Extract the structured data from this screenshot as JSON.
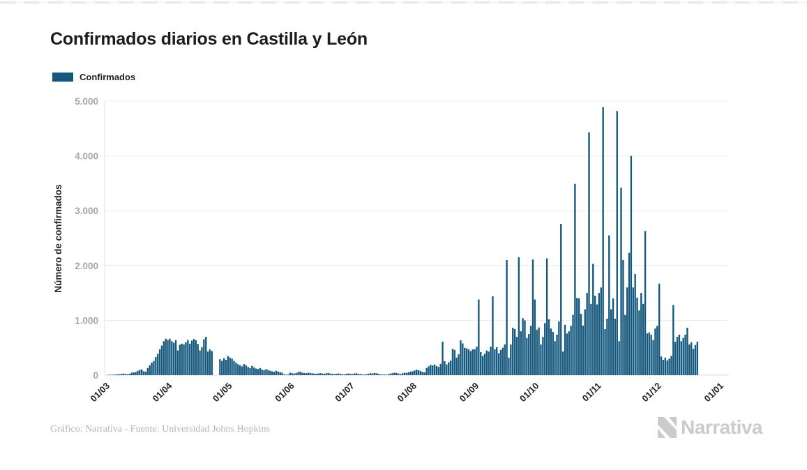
{
  "header": {
    "title": "Confirmados diarios en Castilla y León"
  },
  "legend": {
    "items": [
      {
        "label": "Confirmados",
        "color": "#14587e"
      }
    ]
  },
  "footer": {
    "credit": "Gráfico: Narrativa - Fuente: Universidad Johns Hopkins",
    "brand": "Narrativa"
  },
  "chart_data": {
    "type": "bar",
    "title": "Confirmados diarios en Castilla y León",
    "xlabel": "",
    "ylabel": "Número de confirmados",
    "ylim": [
      0,
      5000
    ],
    "grid": "horizontal",
    "legend_position": "top-left",
    "bar_color": "#14587e",
    "axis_colors": {
      "grid": "#ececec",
      "axis_line": "#e0e0e0",
      "y_tick_text": "#a6a6a6",
      "x_tick_text": "#222222"
    },
    "y_ticks": [
      {
        "value": 0,
        "label": "0"
      },
      {
        "value": 1000,
        "label": "1.000"
      },
      {
        "value": 2000,
        "label": "2.000"
      },
      {
        "value": 3000,
        "label": "3.000"
      },
      {
        "value": 4000,
        "label": "4.000"
      },
      {
        "value": 5000,
        "label": "5.000"
      }
    ],
    "x_ticks": [
      {
        "index": 0,
        "label": "01/03"
      },
      {
        "index": 31,
        "label": "01/04"
      },
      {
        "index": 61,
        "label": "01/05"
      },
      {
        "index": 92,
        "label": "01/06"
      },
      {
        "index": 122,
        "label": "01/07"
      },
      {
        "index": 153,
        "label": "01/08"
      },
      {
        "index": 184,
        "label": "01/09"
      },
      {
        "index": 214,
        "label": "01/10"
      },
      {
        "index": 245,
        "label": "01/11"
      },
      {
        "index": 275,
        "label": "01/12"
      },
      {
        "index": 306,
        "label": "01/01"
      }
    ],
    "total_slots": 307,
    "series": [
      {
        "name": "Confirmados",
        "values": [
          0,
          5,
          8,
          6,
          10,
          12,
          15,
          18,
          25,
          28,
          20,
          18,
          25,
          45,
          50,
          55,
          80,
          95,
          105,
          70,
          65,
          130,
          180,
          230,
          260,
          330,
          390,
          470,
          540,
          620,
          665,
          640,
          665,
          620,
          590,
          640,
          450,
          555,
          575,
          560,
          600,
          640,
          575,
          630,
          660,
          640,
          570,
          450,
          510,
          655,
          700,
          430,
          470,
          440,
          0,
          0,
          0,
          290,
          260,
          310,
          280,
          350,
          320,
          300,
          260,
          230,
          200,
          180,
          160,
          200,
          180,
          150,
          130,
          170,
          140,
          120,
          110,
          130,
          100,
          90,
          110,
          95,
          80,
          70,
          60,
          80,
          65,
          55,
          45,
          15,
          10,
          12,
          45,
          35,
          30,
          40,
          55,
          65,
          45,
          40,
          35,
          45,
          40,
          35,
          30,
          25,
          30,
          35,
          30,
          25,
          35,
          40,
          30,
          25,
          20,
          25,
          30,
          25,
          20,
          15,
          25,
          30,
          25,
          20,
          30,
          35,
          25,
          20,
          15,
          10,
          20,
          25,
          35,
          30,
          40,
          35,
          25,
          15,
          10,
          15,
          8,
          20,
          30,
          35,
          45,
          40,
          30,
          20,
          35,
          45,
          40,
          55,
          65,
          70,
          85,
          100,
          90,
          75,
          60,
          50,
          130,
          160,
          190,
          175,
          195,
          165,
          150,
          205,
          610,
          255,
          195,
          235,
          265,
          480,
          460,
          320,
          380,
          635,
          580,
          500,
          490,
          470,
          440,
          470,
          470,
          520,
          1380,
          420,
          350,
          390,
          450,
          430,
          520,
          1440,
          470,
          510,
          400,
          460,
          500,
          560,
          2100,
          320,
          560,
          865,
          840,
          700,
          2150,
          800,
          1040,
          1000,
          680,
          750,
          900,
          2110,
          1380,
          830,
          870,
          560,
          700,
          950,
          2130,
          1020,
          850,
          790,
          620,
          740,
          980,
          2760,
          430,
          920,
          760,
          800,
          900,
          1100,
          3490,
          1410,
          1400,
          1120,
          905,
          1200,
          1500,
          4430,
          1300,
          2030,
          1450,
          1290,
          1500,
          1600,
          4890,
          840,
          1030,
          2550,
          1200,
          1400,
          1030,
          4820,
          620,
          3420,
          2100,
          1100,
          1600,
          2230,
          4000,
          1600,
          1845,
          1415,
          1180,
          1500,
          1300,
          2630,
          760,
          780,
          740,
          640,
          850,
          900,
          1670,
          340,
          280,
          320,
          270,
          300,
          350,
          1280,
          610,
          700,
          740,
          620,
          680,
          740,
          865,
          560,
          600,
          480,
          550,
          610
        ]
      }
    ]
  }
}
